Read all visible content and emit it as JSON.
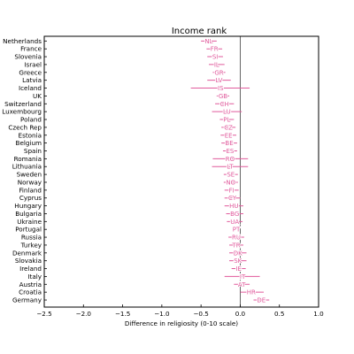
{
  "chart_data": {
    "type": "scatter",
    "title": "Income rank",
    "xlabel": "Difference in religiosity (0-10 scale)",
    "ylabel": "",
    "xlim": [
      -2.5,
      1.0
    ],
    "xticks": [
      "−2.5",
      "−2.0",
      "−1.5",
      "−1.0",
      "−0.5",
      "0.0",
      "0.5",
      "1.0"
    ],
    "xtick_values": [
      -2.5,
      -2.0,
      -1.5,
      -1.0,
      -0.5,
      0.0,
      0.5,
      1.0
    ],
    "zero_line": 0.0,
    "color": "#e05a9c",
    "countries": [
      {
        "name": "Netherlands",
        "code": "NL",
        "est": -0.4,
        "lo": -0.5,
        "hi": -0.3
      },
      {
        "name": "France",
        "code": "FR",
        "est": -0.33,
        "lo": -0.43,
        "hi": -0.23
      },
      {
        "name": "Slovenia",
        "code": "SI",
        "est": -0.32,
        "lo": -0.42,
        "hi": -0.22
      },
      {
        "name": "Israel",
        "code": "IL",
        "est": -0.3,
        "lo": -0.4,
        "hi": -0.2
      },
      {
        "name": "Greece",
        "code": "GR",
        "est": -0.27,
        "lo": -0.35,
        "hi": -0.19
      },
      {
        "name": "Latvia",
        "code": "LV",
        "est": -0.27,
        "lo": -0.42,
        "hi": -0.12
      },
      {
        "name": "Iceland",
        "code": "IS",
        "est": -0.25,
        "lo": -0.63,
        "hi": 0.12
      },
      {
        "name": "UK",
        "code": "GB",
        "est": -0.22,
        "lo": -0.3,
        "hi": -0.14
      },
      {
        "name": "Switzerland",
        "code": "CH",
        "est": -0.2,
        "lo": -0.32,
        "hi": -0.08
      },
      {
        "name": "Luxembourg",
        "code": "LU",
        "est": -0.17,
        "lo": -0.36,
        "hi": 0.02
      },
      {
        "name": "Poland",
        "code": "PL",
        "est": -0.17,
        "lo": -0.26,
        "hi": -0.08
      },
      {
        "name": "Czech Rep",
        "code": "CZ",
        "est": -0.15,
        "lo": -0.24,
        "hi": -0.06
      },
      {
        "name": "Estonia",
        "code": "EE",
        "est": -0.15,
        "lo": -0.25,
        "hi": -0.05
      },
      {
        "name": "Belgium",
        "code": "BE",
        "est": -0.14,
        "lo": -0.24,
        "hi": -0.04
      },
      {
        "name": "Spain",
        "code": "ES",
        "est": -0.13,
        "lo": -0.22,
        "hi": -0.04
      },
      {
        "name": "Romania",
        "code": "RO",
        "est": -0.13,
        "lo": -0.35,
        "hi": 0.1
      },
      {
        "name": "Lithuania",
        "code": "LT",
        "est": -0.13,
        "lo": -0.36,
        "hi": 0.1
      },
      {
        "name": "Sweden",
        "code": "SE",
        "est": -0.12,
        "lo": -0.21,
        "hi": -0.03
      },
      {
        "name": "Norway",
        "code": "NO",
        "est": -0.12,
        "lo": -0.21,
        "hi": -0.03
      },
      {
        "name": "Finland",
        "code": "FI",
        "est": -0.11,
        "lo": -0.2,
        "hi": -0.02
      },
      {
        "name": "Cyprus",
        "code": "CY",
        "est": -0.1,
        "lo": -0.2,
        "hi": 0.0
      },
      {
        "name": "Hungary",
        "code": "HU",
        "est": -0.08,
        "lo": -0.2,
        "hi": 0.04
      },
      {
        "name": "Bulgaria",
        "code": "BG",
        "est": -0.07,
        "lo": -0.18,
        "hi": 0.04
      },
      {
        "name": "Ukraine",
        "code": "UA",
        "est": -0.07,
        "lo": -0.17,
        "hi": 0.03
      },
      {
        "name": "Portugal",
        "code": "PT",
        "est": -0.05,
        "lo": -0.05,
        "hi": -0.05
      },
      {
        "name": "Russia",
        "code": "RU",
        "est": -0.05,
        "lo": -0.15,
        "hi": 0.05
      },
      {
        "name": "Turkey",
        "code": "TR",
        "est": -0.05,
        "lo": -0.14,
        "hi": 0.04
      },
      {
        "name": "Denmark",
        "code": "DK",
        "est": -0.03,
        "lo": -0.14,
        "hi": 0.08
      },
      {
        "name": "Slovakia",
        "code": "SK",
        "est": -0.03,
        "lo": -0.14,
        "hi": 0.08
      },
      {
        "name": "Ireland",
        "code": "IE",
        "est": -0.02,
        "lo": -0.11,
        "hi": 0.07
      },
      {
        "name": "Italy",
        "code": "IT",
        "est": 0.03,
        "lo": -0.2,
        "hi": 0.25
      },
      {
        "name": "Austria",
        "code": "AT",
        "est": 0.02,
        "lo": -0.08,
        "hi": 0.12
      },
      {
        "name": "Croatia",
        "code": "HR",
        "est": 0.14,
        "lo": 0.0,
        "hi": 0.3
      },
      {
        "name": "Germany",
        "code": "DE",
        "est": 0.27,
        "lo": 0.17,
        "hi": 0.37
      }
    ]
  }
}
